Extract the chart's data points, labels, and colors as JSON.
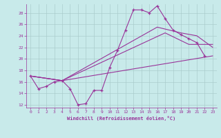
{
  "xlabel": "Windchill (Refroidissement éolien,°C)",
  "background_color": "#c8eaea",
  "grid_color": "#aacccc",
  "line_color": "#993399",
  "xlim": [
    -0.5,
    23.5
  ],
  "ylim": [
    11.5,
    29.5
  ],
  "xticks": [
    0,
    1,
    2,
    3,
    4,
    5,
    6,
    7,
    8,
    9,
    10,
    11,
    12,
    13,
    14,
    15,
    16,
    17,
    18,
    19,
    20,
    21,
    22,
    23
  ],
  "yticks": [
    12,
    14,
    16,
    18,
    20,
    22,
    24,
    26,
    28
  ],
  "main_x": [
    0,
    1,
    2,
    3,
    4,
    5,
    6,
    7,
    8,
    9,
    10,
    11,
    12,
    13,
    14,
    15,
    16,
    17,
    18,
    19,
    20,
    21,
    22
  ],
  "main_y": [
    17.0,
    14.8,
    15.2,
    16.0,
    16.2,
    14.8,
    12.0,
    12.2,
    14.5,
    14.5,
    18.5,
    21.5,
    25.0,
    28.5,
    28.5,
    28.0,
    29.2,
    27.0,
    25.0,
    24.2,
    23.5,
    22.8,
    20.5
  ],
  "line2_x": [
    0,
    4,
    23
  ],
  "line2_y": [
    17.0,
    16.2,
    20.5
  ],
  "line3_x": [
    0,
    4,
    17,
    20,
    23
  ],
  "line3_y": [
    17.0,
    16.2,
    24.5,
    22.5,
    22.5
  ],
  "line4_x": [
    0,
    4,
    16,
    19,
    21,
    23
  ],
  "line4_y": [
    17.0,
    16.2,
    25.5,
    24.5,
    24.0,
    22.0
  ]
}
